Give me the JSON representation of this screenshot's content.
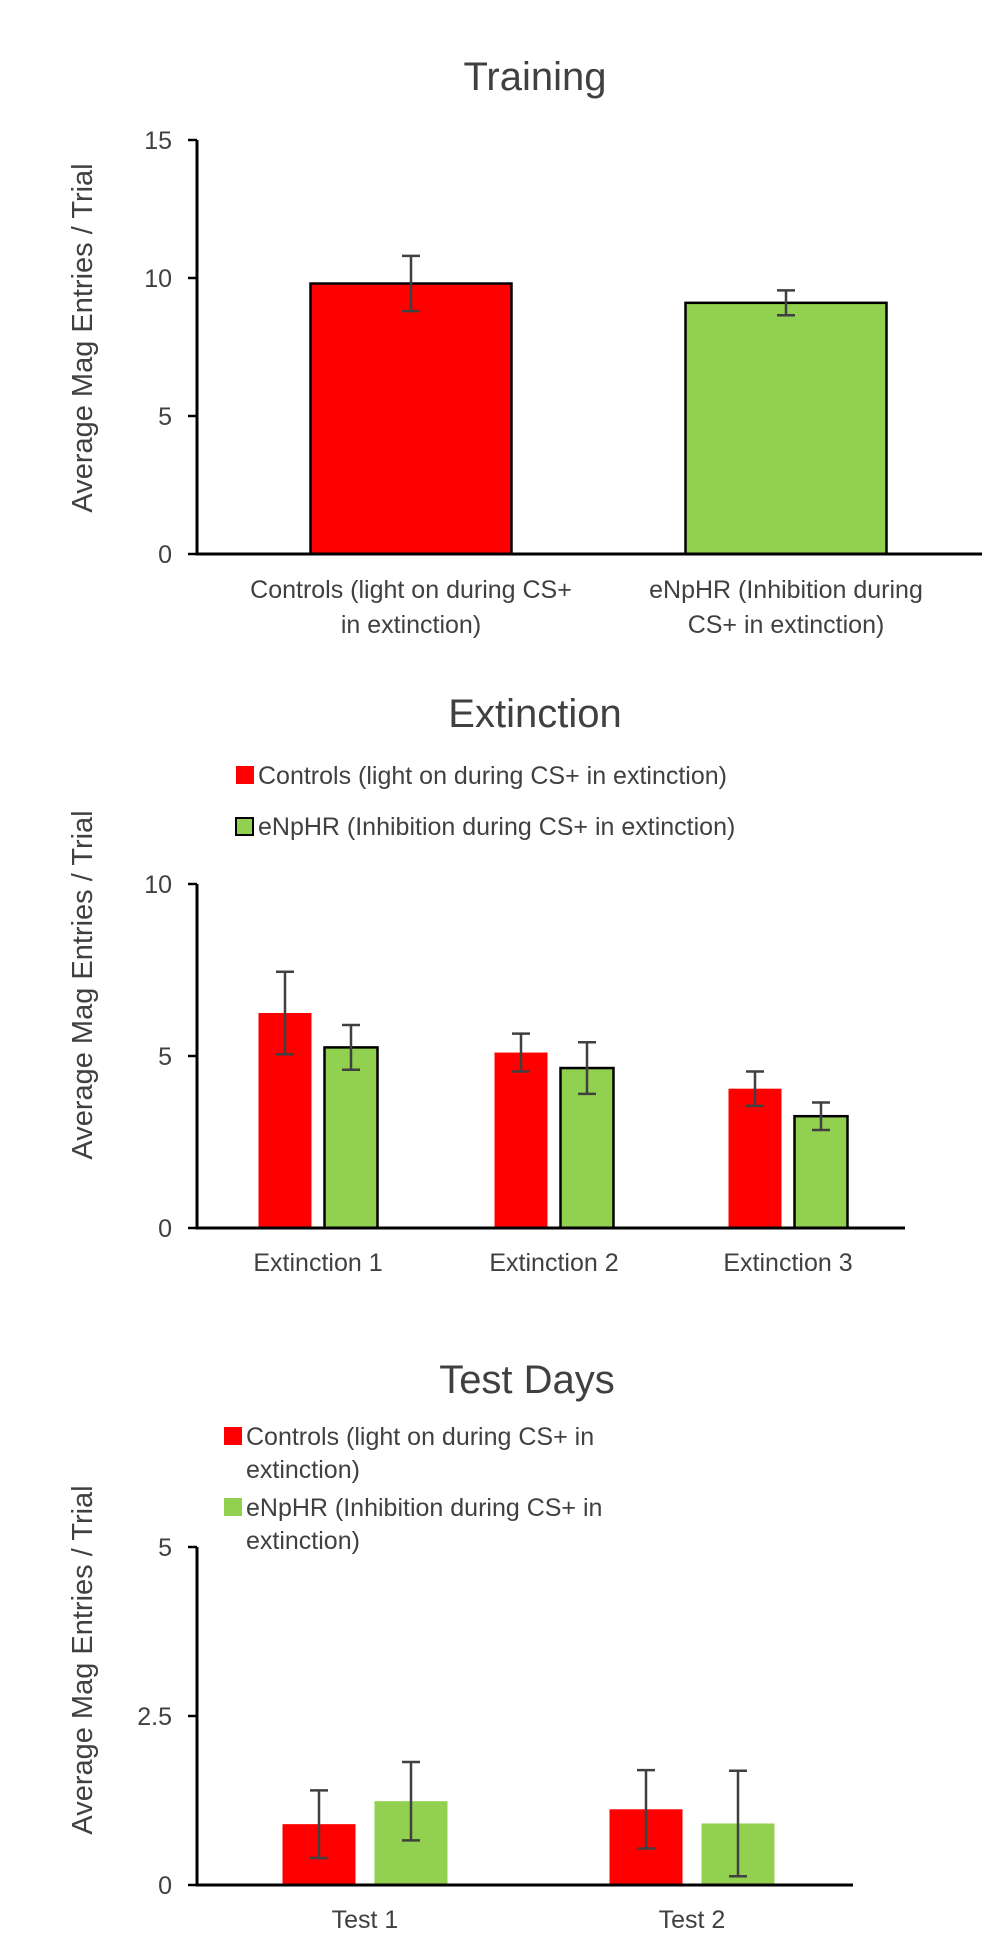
{
  "chart_data": [
    {
      "type": "bar",
      "title": "Training",
      "ylabel": "Average Mag Entries / Trial",
      "xlabel": "",
      "ylim": [
        0,
        15
      ],
      "yticks": [
        "0",
        "5",
        "10",
        "15"
      ],
      "categories": [
        "Controls (light on during CS+ in extinction)",
        "eNpHR (Inhibition during CS+ in extinction)"
      ],
      "category_lines": [
        [
          "Controls (light on during CS+",
          "in extinction)"
        ],
        [
          "eNpHR (Inhibition during",
          "CS+ in extinction)"
        ]
      ],
      "bars": [
        {
          "value": 9.8,
          "error": 1.0,
          "color": "#ff0000",
          "stroke": "#000000"
        },
        {
          "value": 9.1,
          "error": 0.45,
          "color": "#92d050",
          "stroke": "#000000"
        }
      ]
    },
    {
      "type": "bar",
      "title": "Extinction",
      "ylabel": "Average Mag Entries / Trial",
      "xlabel": "",
      "ylim": [
        0,
        10
      ],
      "yticks": [
        "0",
        "5",
        "10"
      ],
      "categories": [
        "Extinction 1",
        "Extinction 2",
        "Extinction 3"
      ],
      "legend": [
        {
          "label": "Controls (light on during CS+ in extinction)",
          "color": "#ff0000",
          "stroke": "none"
        },
        {
          "label": "eNpHR (Inhibition during CS+ in extinction)",
          "color": "#92d050",
          "stroke": "#000000"
        }
      ],
      "series": [
        {
          "name": "Controls (light on during CS+ in extinction)",
          "color": "#ff0000",
          "stroke": "none",
          "values": [
            6.25,
            5.1,
            4.05
          ],
          "errors": [
            1.2,
            0.55,
            0.5
          ]
        },
        {
          "name": "eNpHR (Inhibition during CS+ in extinction)",
          "color": "#92d050",
          "stroke": "#000000",
          "values": [
            5.25,
            4.65,
            3.25
          ],
          "errors": [
            0.65,
            0.75,
            0.4
          ]
        }
      ]
    },
    {
      "type": "bar",
      "title": "Test Days",
      "ylabel": "Average Mag Entries / Trial",
      "xlabel": "",
      "ylim": [
        0,
        5
      ],
      "yticks": [
        "0",
        "2.5",
        "5"
      ],
      "categories": [
        "Test 1",
        "Test 2"
      ],
      "legend": [
        {
          "label": "Controls (light on during CS+ in extinction)",
          "lines": [
            "Controls (light on during CS+ in",
            "extinction)"
          ],
          "color": "#ff0000",
          "stroke": "none"
        },
        {
          "label": "eNpHR (Inhibition during CS+ in extinction)",
          "lines": [
            "eNpHR (Inhibition during CS+ in",
            "extinction)"
          ],
          "color": "#92d050",
          "stroke": "none"
        }
      ],
      "series": [
        {
          "name": "Controls (light on during CS+ in extinction)",
          "color": "#ff0000",
          "stroke": "none",
          "values": [
            0.9,
            1.12
          ],
          "errors": [
            0.5,
            0.58
          ]
        },
        {
          "name": "eNpHR (Inhibition during CS+ in extinction)",
          "color": "#92d050",
          "stroke": "none",
          "values": [
            1.24,
            0.91
          ],
          "errors": [
            0.58,
            0.78
          ]
        }
      ]
    }
  ]
}
